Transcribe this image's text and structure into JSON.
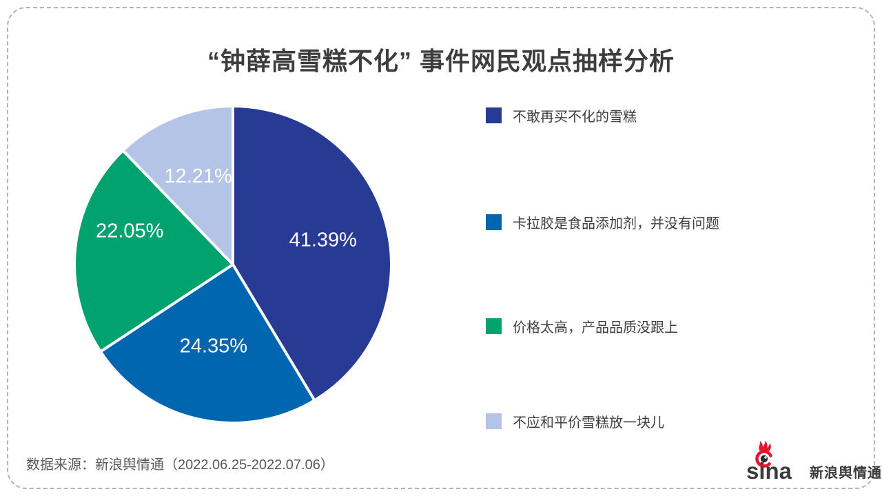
{
  "title": {
    "text": "“钟薛高雪糕不化” 事件网民观点抽样分析"
  },
  "chart_data": {
    "type": "pie",
    "title": "“钟薛高雪糕不化” 事件网民观点抽样分析",
    "start_angle_deg": 0,
    "direction": "clockwise",
    "legend_position": "right",
    "label_format": "{value}%",
    "slices": [
      {
        "label": "不敢再买不化的雪糕",
        "value": 41.39,
        "color": "#283B94"
      },
      {
        "label": "卡拉胶是食品添加剂，并没有问题",
        "value": 24.35,
        "color": "#0066B0"
      },
      {
        "label": "价格太高，产品品质没跟上",
        "value": 22.05,
        "color": "#00A26E"
      },
      {
        "label": "不应和平价雪糕放一块儿",
        "value": 12.21,
        "color": "#B3C4E7"
      }
    ]
  },
  "footer": {
    "source": "数据来源：新浪舆情通（2022.06.25-2022.07.06）"
  },
  "logo": {
    "brand": "sina",
    "product": "新浪舆情通",
    "icon_color": "#E6162D"
  }
}
